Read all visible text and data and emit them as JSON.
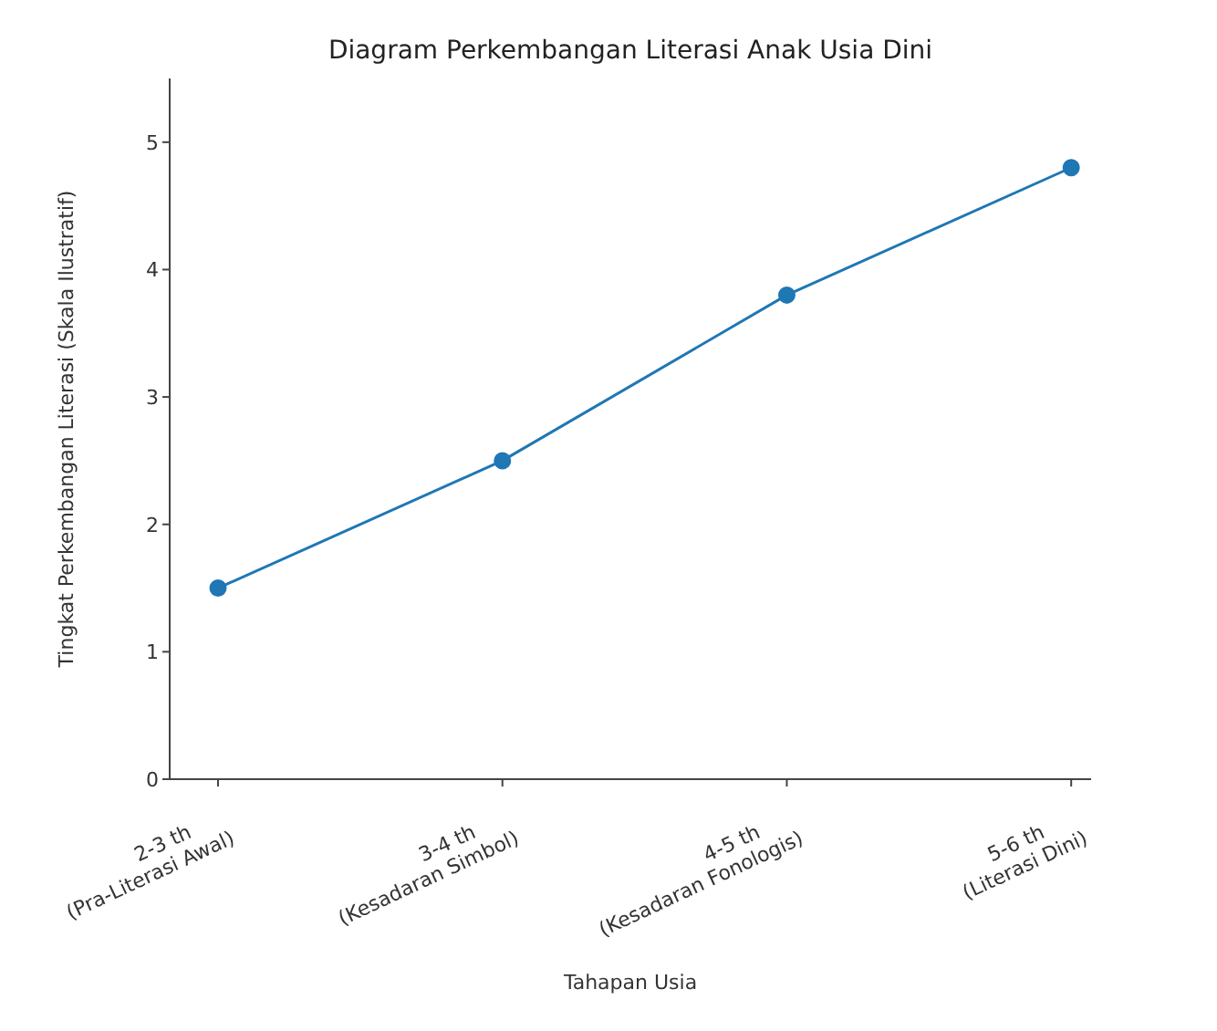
{
  "chart_data": {
    "type": "line",
    "title": "Diagram Perkembangan Literasi Anak Usia Dini",
    "xlabel": "Tahapan Usia",
    "ylabel": "Tingkat Perkembangan Literasi (Skala Ilustratif)",
    "categories": [
      "2-3 th\n(Pra-Literasi Awal)",
      "3-4 th\n(Kesadaran Simbol)",
      "4-5 th\n(Kesadaran Fonologis)",
      "5-6 th\n(Literasi Dini)"
    ],
    "series": [
      {
        "color": "#1f77b4",
        "values": [
          1.5,
          2.5,
          3.8,
          4.8
        ]
      }
    ],
    "ylim": [
      0,
      5.5
    ],
    "yticks": [
      0,
      1,
      2,
      3,
      4,
      5
    ],
    "grid": false,
    "legend": false,
    "marker": "circle",
    "line_style": "solid"
  }
}
